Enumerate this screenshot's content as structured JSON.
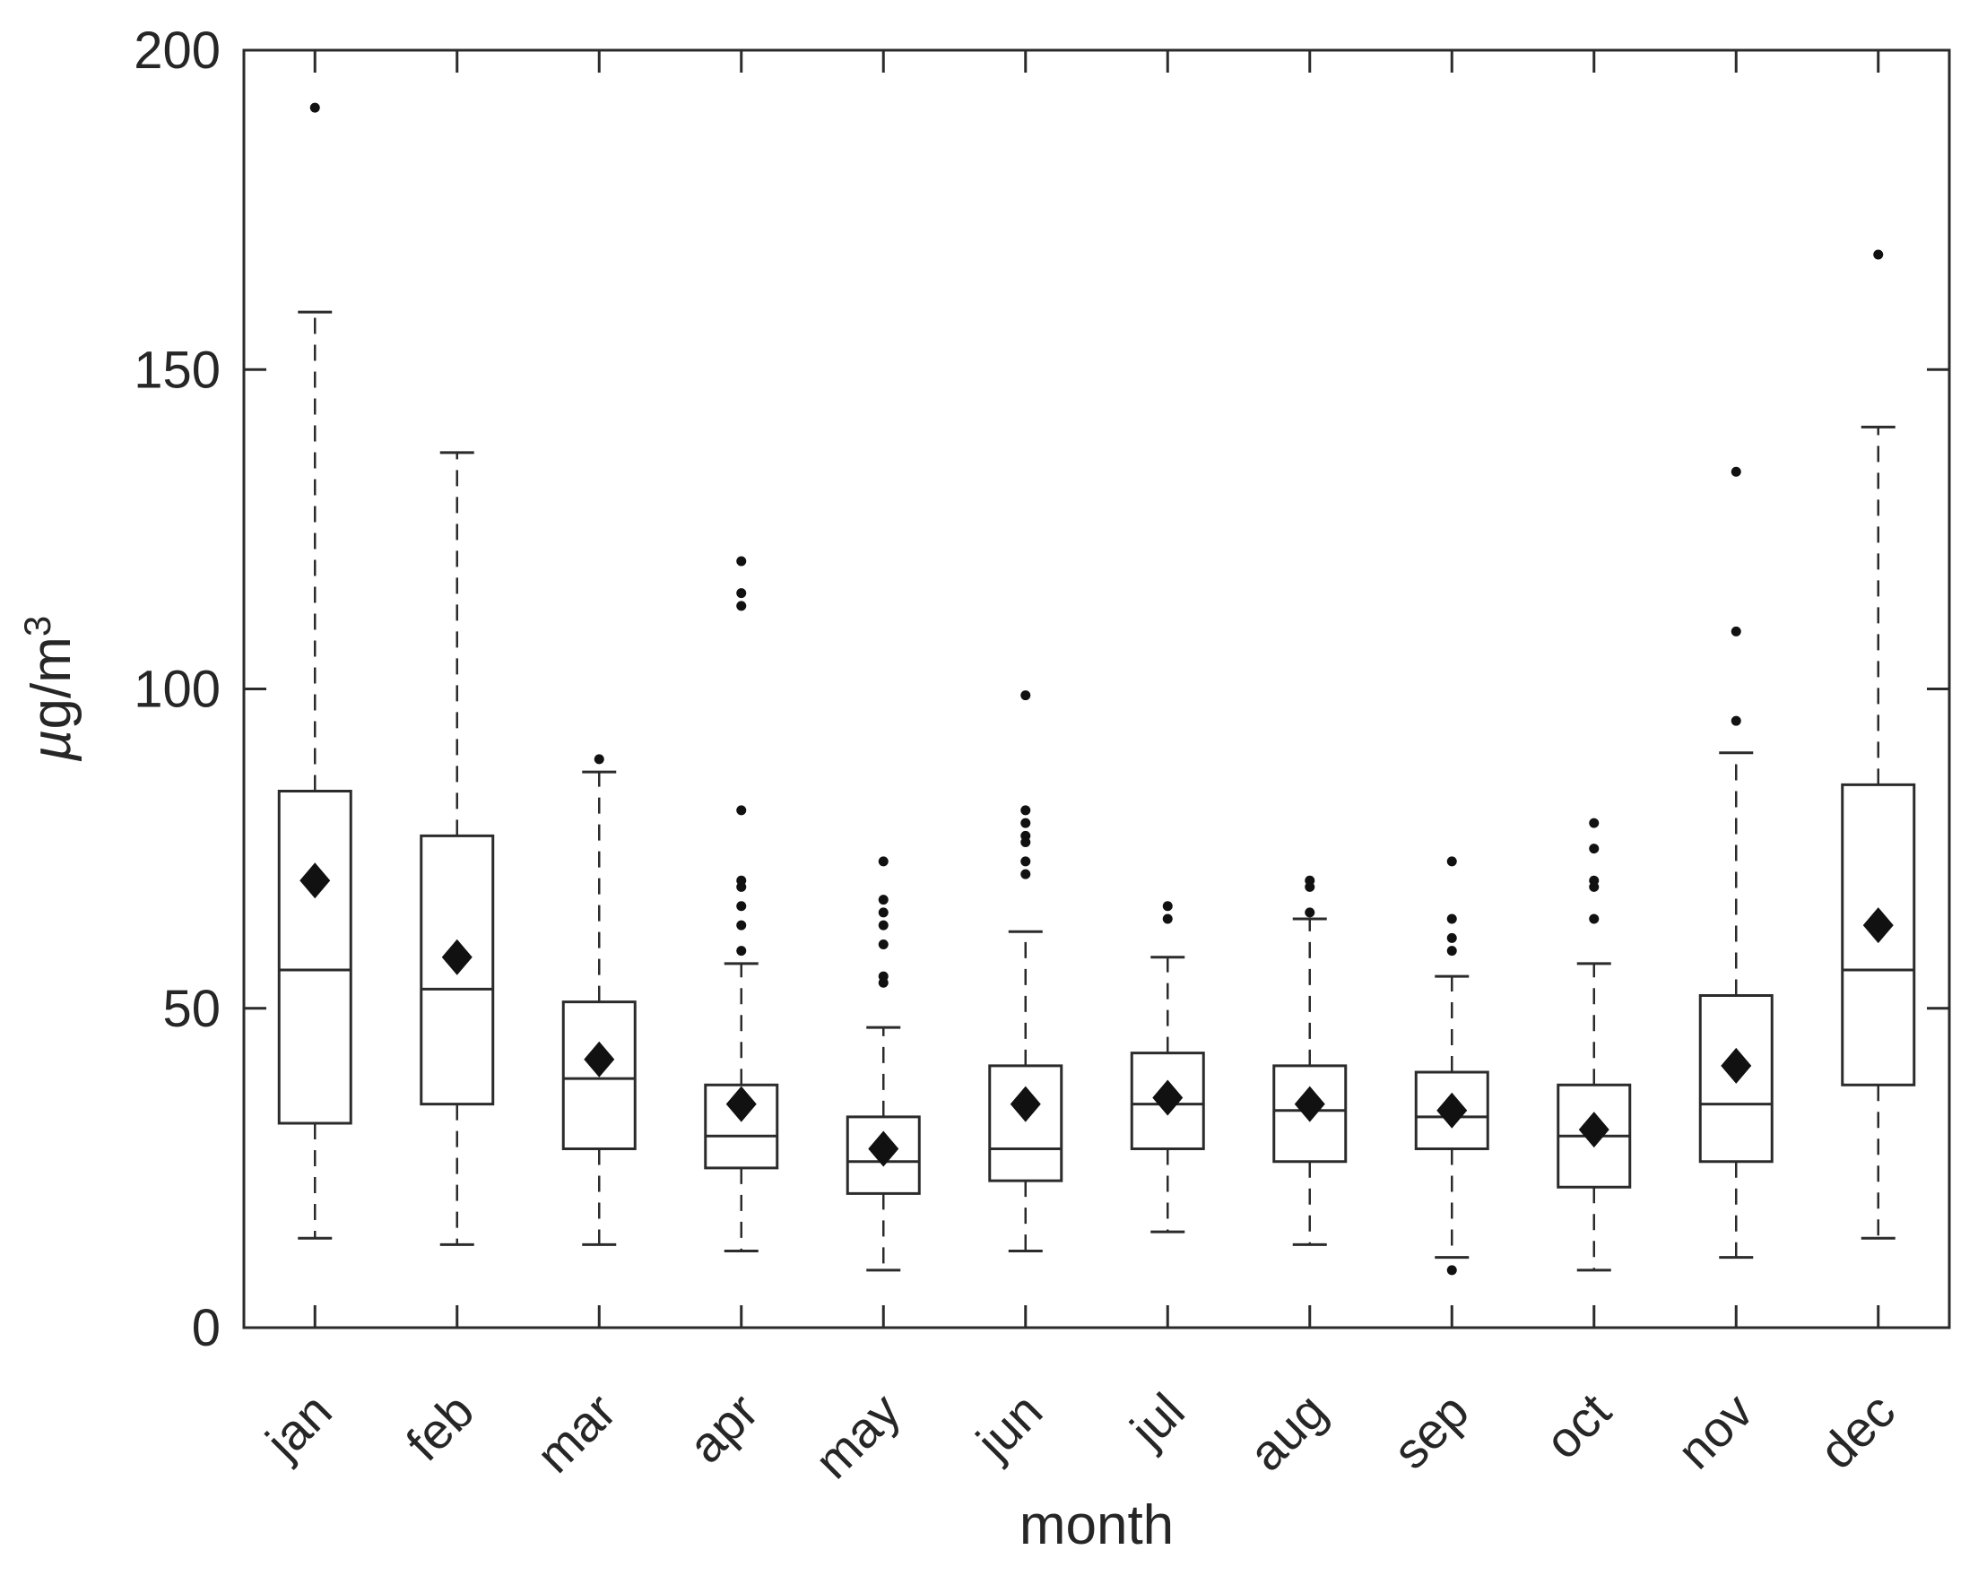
{
  "chart_data": {
    "type": "boxplot",
    "title": "",
    "xlabel": "month",
    "ylabel_mu": "µ",
    "ylabel_unit": "g/m",
    "ylabel_exp": "3",
    "ylim": [
      0,
      200
    ],
    "y_ticks": [
      0,
      50,
      100,
      150,
      200
    ],
    "grid": false,
    "legend": "none",
    "marker_meanings": {
      "box": "interquartile range (Q1-Q3)",
      "horizontal-line-in-box": "median",
      "diamond": "mean",
      "dashed-whiskers": "range within 1.5 IQR",
      "dots": "outliers"
    },
    "categories": [
      "jan",
      "feb",
      "mar",
      "apr",
      "may",
      "jun",
      "jul",
      "aug",
      "sep",
      "oct",
      "nov",
      "dec"
    ],
    "months": [
      {
        "label": "jan",
        "low": 14,
        "q1": 32,
        "median": 56,
        "q3": 84,
        "high": 159,
        "mean": 70,
        "outliers": [
          191
        ]
      },
      {
        "label": "feb",
        "low": 13,
        "q1": 35,
        "median": 53,
        "q3": 77,
        "high": 137,
        "mean": 58,
        "outliers": []
      },
      {
        "label": "mar",
        "low": 13,
        "q1": 28,
        "median": 39,
        "q3": 51,
        "high": 87,
        "mean": 42,
        "outliers": [
          89
        ]
      },
      {
        "label": "apr",
        "low": 12,
        "q1": 25,
        "median": 30,
        "q3": 38,
        "high": 57,
        "mean": 35,
        "outliers": [
          120,
          115,
          113,
          81,
          70,
          69,
          66,
          63,
          59
        ]
      },
      {
        "label": "may",
        "low": 9,
        "q1": 21,
        "median": 26,
        "q3": 33,
        "high": 47,
        "mean": 28,
        "outliers": [
          73,
          67,
          65,
          63,
          60,
          55,
          54
        ]
      },
      {
        "label": "jun",
        "low": 12,
        "q1": 23,
        "median": 28,
        "q3": 41,
        "high": 62,
        "mean": 35,
        "outliers": [
          99,
          81,
          79,
          77,
          76,
          73,
          71
        ]
      },
      {
        "label": "jul",
        "low": 15,
        "q1": 28,
        "median": 35,
        "q3": 43,
        "high": 58,
        "mean": 36,
        "outliers": [
          66,
          64
        ]
      },
      {
        "label": "aug",
        "low": 13,
        "q1": 26,
        "median": 34,
        "q3": 41,
        "high": 64,
        "mean": 35,
        "outliers": [
          70,
          69,
          65
        ]
      },
      {
        "label": "sep",
        "low": 11,
        "q1": 28,
        "median": 33,
        "q3": 40,
        "high": 55,
        "mean": 34,
        "outliers": [
          73,
          64,
          61,
          59,
          9
        ]
      },
      {
        "label": "oct",
        "low": 9,
        "q1": 22,
        "median": 30,
        "q3": 38,
        "high": 57,
        "mean": 31,
        "outliers": [
          79,
          75,
          70,
          69,
          64
        ]
      },
      {
        "label": "nov",
        "low": 11,
        "q1": 26,
        "median": 35,
        "q3": 52,
        "high": 90,
        "mean": 41,
        "outliers": [
          134,
          109,
          95
        ]
      },
      {
        "label": "dec",
        "low": 14,
        "q1": 38,
        "median": 56,
        "q3": 85,
        "high": 141,
        "mean": 63,
        "outliers": [
          168
        ]
      }
    ],
    "colors": {
      "line": "#2b2b2b",
      "marker": "#111111",
      "text": "#262626",
      "background": "#ffffff"
    }
  }
}
